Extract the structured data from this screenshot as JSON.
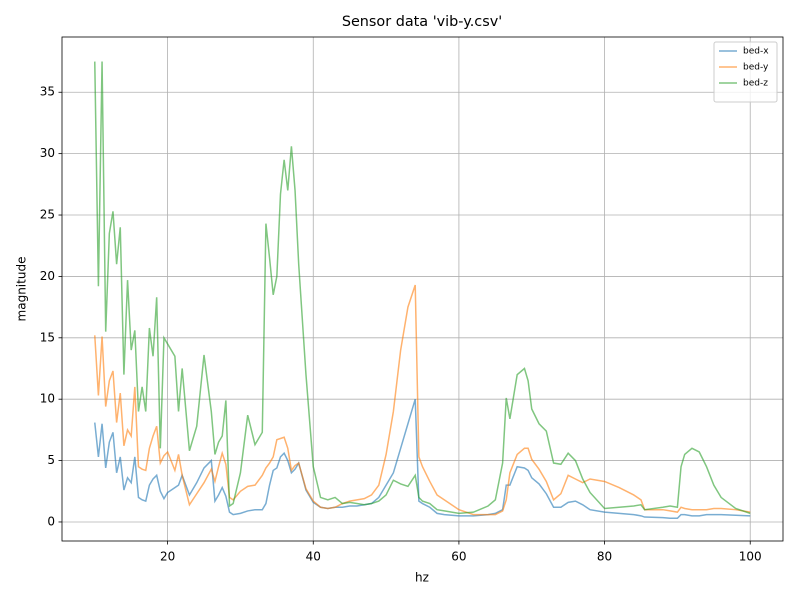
{
  "chart_data": {
    "type": "line",
    "title": "Sensor data 'vib-y.csv'",
    "xlabel": "hz",
    "ylabel": "magnitude",
    "x": [
      10,
      10.5,
      11,
      11.5,
      12,
      12.5,
      13,
      13.5,
      14,
      14.5,
      15,
      15.5,
      16,
      16.5,
      17,
      17.5,
      18,
      18.5,
      19,
      19.5,
      20,
      21,
      21.5,
      22,
      23,
      24,
      25,
      26,
      26.5,
      27,
      27.5,
      28,
      28.5,
      29,
      30,
      31,
      32,
      33,
      33.5,
      34,
      34.5,
      35,
      35.5,
      36,
      36.5,
      37,
      37.5,
      38,
      39,
      40,
      41,
      42,
      43,
      44,
      45,
      46,
      47,
      48,
      49,
      50,
      51,
      52,
      53,
      54,
      54.5,
      55,
      56,
      57,
      58,
      60,
      62,
      64,
      65,
      66,
      66.5,
      67,
      68,
      69,
      69.5,
      70,
      71,
      72,
      73,
      74,
      75,
      76,
      77,
      78,
      80,
      82,
      84,
      85,
      85.5,
      88,
      89,
      90,
      90.5,
      91,
      92,
      93,
      94,
      95,
      96,
      98,
      100
    ],
    "series": [
      {
        "name": "bed-x",
        "color": "#1f77b4",
        "values": [
          8.1,
          5.3,
          8,
          4.4,
          6.5,
          7.3,
          4,
          5.3,
          2.6,
          3.6,
          3.2,
          5.3,
          2,
          1.8,
          1.7,
          3,
          3.5,
          3.8,
          2.5,
          1.9,
          2.4,
          2.8,
          3,
          3.8,
          2.2,
          3.2,
          4.4,
          5,
          1.7,
          2.2,
          2.8,
          2.1,
          0.8,
          0.6,
          0.7,
          0.9,
          1,
          1,
          1.5,
          3,
          4.2,
          4.4,
          5.3,
          5.6,
          5,
          4,
          4.3,
          4.8,
          2.6,
          1.6,
          1.2,
          1.1,
          1.2,
          1.2,
          1.3,
          1.3,
          1.4,
          1.5,
          2,
          3,
          4,
          6,
          8,
          10,
          1.7,
          1.5,
          1.2,
          0.7,
          0.6,
          0.5,
          0.5,
          0.6,
          0.7,
          1,
          3,
          3,
          4.5,
          4.4,
          4.2,
          3.6,
          3.1,
          2.3,
          1.2,
          1.2,
          1.6,
          1.7,
          1.4,
          1,
          0.8,
          0.7,
          0.6,
          0.5,
          0.4,
          0.35,
          0.3,
          0.3,
          0.6,
          0.6,
          0.5,
          0.5,
          0.6,
          0.6,
          0.6,
          0.55,
          0.5
        ]
      },
      {
        "name": "bed-y",
        "color": "#ff7f0e",
        "values": [
          15.2,
          10.3,
          15.1,
          9.4,
          11.5,
          12.3,
          8.1,
          10.5,
          6.2,
          7.5,
          7,
          11,
          4.5,
          4.3,
          4.2,
          6,
          7,
          7.8,
          4.8,
          5.4,
          5.7,
          4.2,
          5.5,
          3.8,
          1.4,
          2.3,
          3.2,
          4.3,
          3.3,
          4.5,
          5.6,
          4.7,
          2,
          1.8,
          2.5,
          2.9,
          3,
          3.8,
          4.4,
          4.8,
          5.3,
          6.7,
          6.8,
          6.9,
          6,
          4.2,
          4.6,
          4.8,
          2.7,
          1.7,
          1.2,
          1.1,
          1.2,
          1.5,
          1.7,
          1.8,
          1.9,
          2.2,
          3,
          5.5,
          9,
          14,
          17.5,
          19.3,
          5.3,
          4.5,
          3.3,
          2.2,
          1.8,
          1,
          0.6,
          0.6,
          0.6,
          0.9,
          1.8,
          4,
          5.5,
          6,
          6,
          5.1,
          4.3,
          3.3,
          1.8,
          2.3,
          3.8,
          3.5,
          3.2,
          3.5,
          3.3,
          2.8,
          2.2,
          1.8,
          1,
          1,
          0.9,
          0.8,
          1.2,
          1.1,
          1,
          1,
          1,
          1.1,
          1.1,
          1,
          0.8
        ]
      },
      {
        "name": "bed-z",
        "color": "#2ca02c",
        "values": [
          37.5,
          19.2,
          37.5,
          15.5,
          23.5,
          25.3,
          21,
          24,
          12,
          19.7,
          14,
          15.6,
          9,
          11,
          9,
          15.8,
          13.5,
          18.3,
          6,
          15,
          14.5,
          13.5,
          9,
          12.5,
          5.8,
          7.8,
          13.6,
          9,
          5.5,
          6.5,
          7,
          9.9,
          1.3,
          1.5,
          4,
          8.7,
          6.3,
          7.3,
          24.3,
          21.5,
          18.5,
          20,
          26.7,
          29.5,
          27,
          30.6,
          27,
          21,
          12,
          4.5,
          2,
          1.8,
          2,
          1.5,
          1.6,
          1.5,
          1.4,
          1.5,
          1.7,
          2.2,
          3.4,
          3.1,
          2.9,
          3.8,
          2,
          1.7,
          1.5,
          1,
          0.9,
          0.7,
          0.8,
          1.3,
          1.8,
          4.8,
          10.1,
          8.4,
          12,
          12.5,
          11.5,
          9.2,
          8,
          7.4,
          4.8,
          4.7,
          5.6,
          5,
          3.5,
          2.4,
          1.1,
          1.2,
          1.3,
          1.4,
          1,
          1.2,
          1.3,
          1.2,
          4.5,
          5.5,
          6,
          5.7,
          4.5,
          3,
          2,
          1.1,
          0.7
        ]
      }
    ],
    "xlim": [
      5.5,
      104.5
    ],
    "ylim": [
      -1.55,
      39.5
    ],
    "xticks": [
      20,
      40,
      60,
      80,
      100
    ],
    "yticks": [
      0,
      5,
      10,
      15,
      20,
      25,
      30,
      35
    ],
    "grid": true,
    "legend": "upper-right"
  }
}
